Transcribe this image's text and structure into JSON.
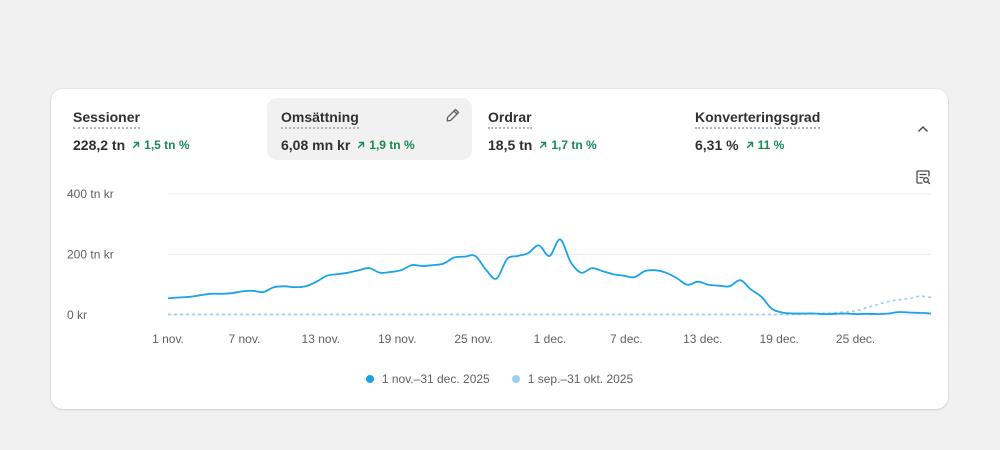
{
  "metrics": [
    {
      "label": "Sessioner",
      "value": "228,2 tn",
      "delta": "1,5 tn %"
    },
    {
      "label": "Omsättning",
      "value": "6,08 mn kr",
      "delta": "1,9 tn %"
    },
    {
      "label": "Ordrar",
      "value": "18,5 tn",
      "delta": "1,7 tn %"
    },
    {
      "label": "Konverteringsgrad",
      "value": "6,31 %",
      "delta": "11 %"
    }
  ],
  "icons": {
    "edit": "pencil-icon",
    "collapse": "chevron-up-icon",
    "inspect": "data-inspect-icon",
    "trend": "arrow-up-right-icon"
  },
  "colors": {
    "current": "#1ba3e8",
    "previous": "#9ccfef",
    "positive": "#178a55"
  },
  "legend": [
    {
      "label": "1 nov.–31 dec. 2025"
    },
    {
      "label": "1 sep.–31 okt. 2025"
    }
  ],
  "chart_data": {
    "type": "line",
    "y_tick_labels": [
      "400 tn kr",
      "200 tn kr",
      "0 kr"
    ],
    "y_ticks": [
      400,
      200,
      0
    ],
    "ylim": [
      0,
      400
    ],
    "x_tick_labels": [
      "1 nov.",
      "7 nov.",
      "13 nov.",
      "19 nov.",
      "25 nov.",
      "1 dec.",
      "7 dec.",
      "13 dec.",
      "19 dec.",
      "25 dec."
    ],
    "grid": true,
    "series": [
      {
        "name": "1 nov.–31 dec. 2025",
        "values": [
          55,
          58,
          60,
          65,
          70,
          70,
          72,
          78,
          80,
          76,
          92,
          95,
          92,
          95,
          110,
          130,
          135,
          140,
          148,
          155,
          140,
          142,
          148,
          165,
          162,
          165,
          170,
          190,
          193,
          195,
          150,
          120,
          185,
          195,
          205,
          230,
          195,
          250,
          175,
          140,
          155,
          145,
          135,
          130,
          125,
          145,
          148,
          140,
          122,
          100,
          110,
          100,
          97,
          95,
          115,
          85,
          60,
          20,
          8,
          5,
          5,
          5,
          3,
          4,
          5,
          3,
          4,
          3,
          5,
          10,
          8,
          7,
          5
        ]
      },
      {
        "name": "1 sep.–31 okt. 2025",
        "dashed": true,
        "values": [
          2,
          2,
          2,
          2,
          2,
          2,
          2,
          2,
          2,
          2,
          2,
          2,
          2,
          2,
          2,
          2,
          2,
          2,
          2,
          2,
          2,
          2,
          2,
          2,
          2,
          2,
          2,
          2,
          2,
          2,
          2,
          2,
          2,
          2,
          2,
          2,
          2,
          2,
          2,
          2,
          2,
          2,
          2,
          2,
          2,
          2,
          2,
          2,
          2,
          2,
          2,
          2,
          2,
          2,
          2,
          2,
          2,
          2,
          2,
          2,
          3,
          4,
          6,
          8,
          10,
          15,
          25,
          35,
          45,
          50,
          55,
          62,
          58
        ]
      }
    ]
  }
}
